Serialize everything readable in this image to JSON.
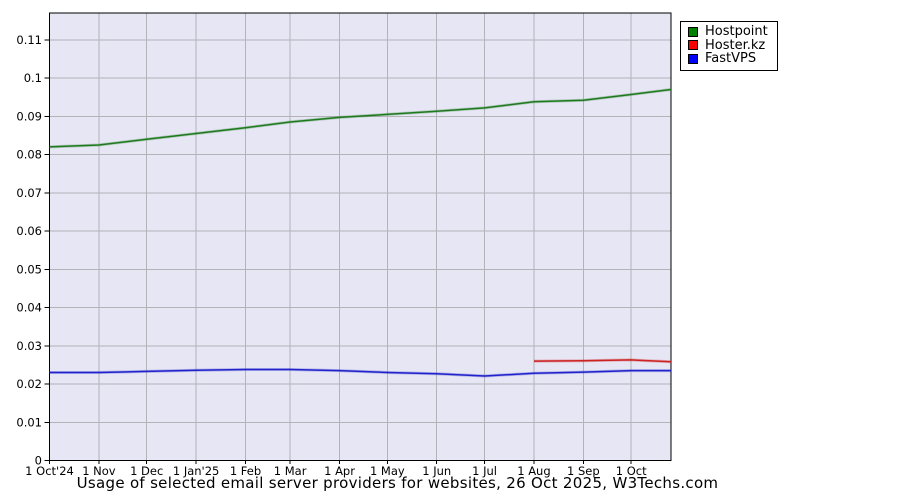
{
  "title": "Usage of selected email server providers for websites, 26 Oct 2025, W3Techs.com",
  "chart_data": {
    "type": "line",
    "x_axis": {
      "start_label": "1 Oct'24",
      "end_date": "26 Oct 2025",
      "tick_labels": [
        "1 Oct'24",
        "1 Nov",
        "1 Dec",
        "1 Jan'25",
        "1 Feb",
        "1 Mar",
        "1 Apr",
        "1 May",
        "1 Jun",
        "1 Jul",
        "1 Aug",
        "1 Sep",
        "1 Oct"
      ],
      "tick_day_offsets": [
        0,
        31,
        61,
        92,
        123,
        151,
        182,
        212,
        243,
        273,
        304,
        335,
        365
      ],
      "total_days": 390
    },
    "y_axis": {
      "tick_labels": [
        "0",
        "0.01",
        "0.02",
        "0.03",
        "0.04",
        "0.05",
        "0.06",
        "0.07",
        "0.08",
        "0.09",
        "0.1",
        "0.11"
      ],
      "tick_values": [
        0,
        0.01,
        0.02,
        0.03,
        0.04,
        0.05,
        0.06,
        0.07,
        0.08,
        0.09,
        0.1,
        0.11
      ],
      "ylim": [
        0,
        0.117
      ]
    },
    "grid": true,
    "legend_position": "outside-top-right",
    "colors": {
      "plot_background": "#e6e6f4",
      "grid": "#b3b3b8",
      "axis_border": "#000000"
    },
    "series": [
      {
        "name": "Hostpoint",
        "swatch": "#007f00",
        "line_color": "#1f7a1f",
        "x_days": [
          0,
          31,
          61,
          92,
          123,
          151,
          182,
          212,
          243,
          273,
          304,
          335,
          365,
          390
        ],
        "values": [
          0.082,
          0.0825,
          0.084,
          0.0855,
          0.087,
          0.0885,
          0.0897,
          0.0905,
          0.0913,
          0.0922,
          0.0938,
          0.0942,
          0.0957,
          0.097
        ]
      },
      {
        "name": "Hoster.kz",
        "swatch": "#ff0000",
        "line_color": "#cc2222",
        "x_days": [
          304,
          335,
          365,
          390
        ],
        "values": [
          0.026,
          0.0261,
          0.0263,
          0.0258
        ]
      },
      {
        "name": "FastVPS",
        "swatch": "#0000ff",
        "line_color": "#2222cc",
        "x_days": [
          0,
          31,
          61,
          92,
          123,
          151,
          182,
          212,
          243,
          273,
          304,
          335,
          365,
          390
        ],
        "values": [
          0.023,
          0.023,
          0.0233,
          0.0236,
          0.0238,
          0.0238,
          0.0235,
          0.023,
          0.0227,
          0.0221,
          0.0228,
          0.0231,
          0.0235,
          0.0235
        ]
      }
    ]
  }
}
